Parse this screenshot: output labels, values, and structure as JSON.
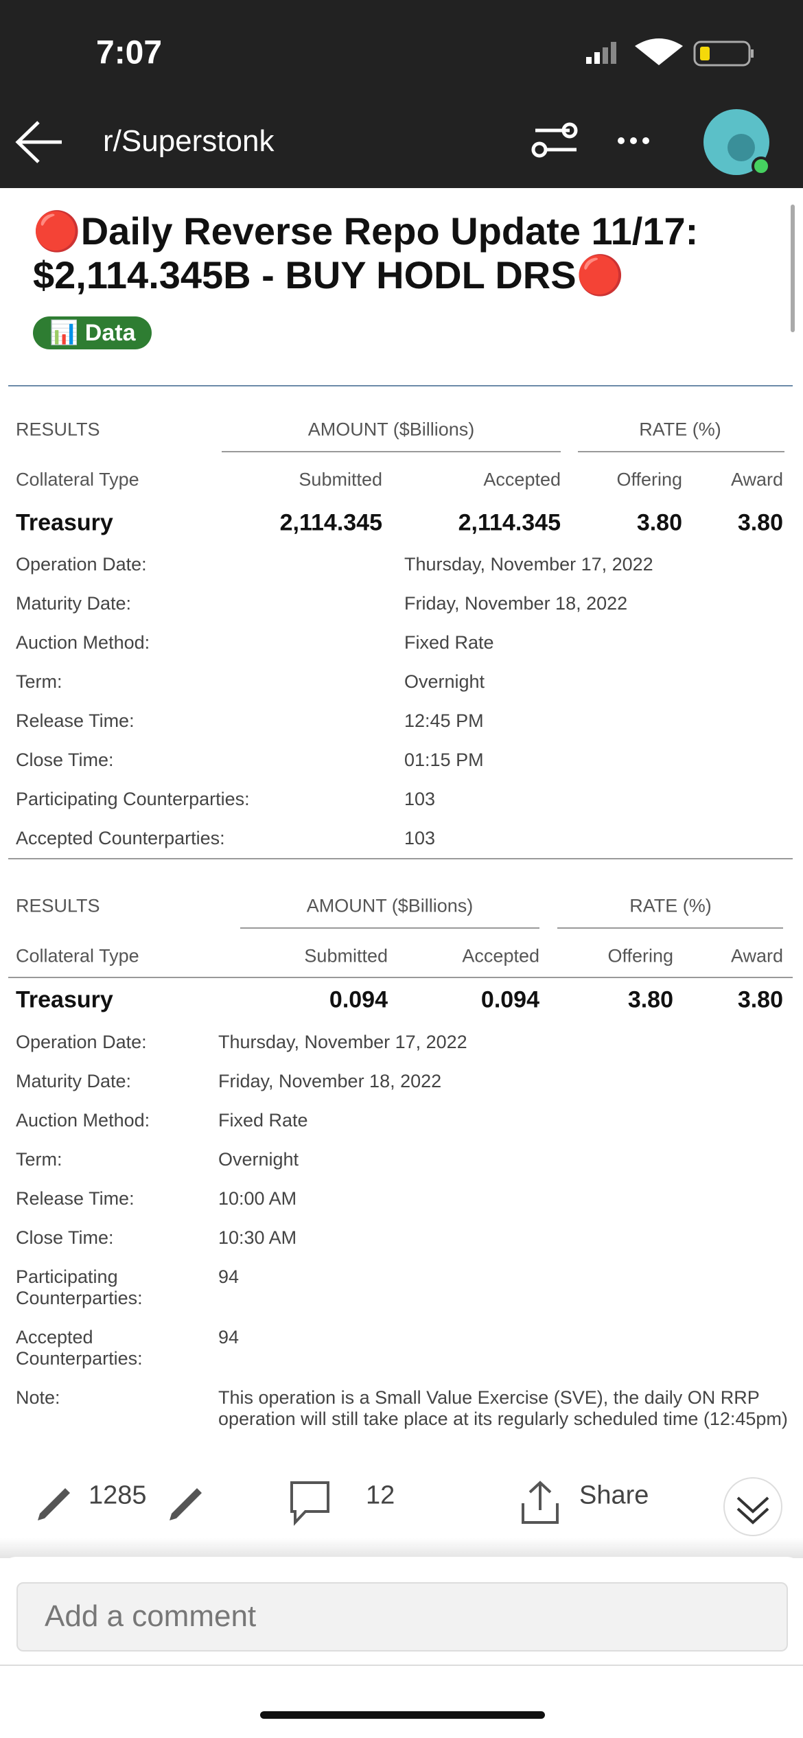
{
  "status_bar": {
    "time": "7:07"
  },
  "nav": {
    "title": "r/Superstonk"
  },
  "post": {
    "title": "🔴Daily Reverse Repo Update 11/17: $2,114.345B - BUY HODL DRS🔴",
    "flair": "📊 Data"
  },
  "tables": [
    {
      "results": "RESULTS",
      "amount": "AMOUNT ($Billions)",
      "rate": "RATE (%)",
      "columns": [
        "Collateral Type",
        "Submitted",
        "Accepted",
        "Offering",
        "Award"
      ],
      "row": [
        "Treasury",
        "2,114.345",
        "2,114.345",
        "3.80",
        "3.80"
      ],
      "details": [
        [
          "Operation Date:",
          "Thursday, November 17, 2022"
        ],
        [
          "Maturity Date:",
          "Friday, November 18, 2022"
        ],
        [
          "Auction Method:",
          "Fixed Rate"
        ],
        [
          "Term:",
          "Overnight"
        ],
        [
          "Release Time:",
          "12:45 PM"
        ],
        [
          "Close Time:",
          "01:15 PM"
        ],
        [
          "Participating Counterparties:",
          "103"
        ],
        [
          "Accepted Counterparties:",
          "103"
        ]
      ]
    },
    {
      "results": "RESULTS",
      "amount": "AMOUNT ($Billions)",
      "rate": "RATE (%)",
      "columns": [
        "Collateral Type",
        "Submitted",
        "Accepted",
        "Offering",
        "Award"
      ],
      "row": [
        "Treasury",
        "0.094",
        "0.094",
        "3.80",
        "3.80"
      ],
      "details": [
        [
          "Operation Date:",
          "Thursday, November 17, 2022"
        ],
        [
          "Maturity Date:",
          "Friday, November 18, 2022"
        ],
        [
          "Auction Method:",
          "Fixed Rate"
        ],
        [
          "Term:",
          "Overnight"
        ],
        [
          "Release Time:",
          "10:00 AM"
        ],
        [
          "Close Time:",
          "10:30 AM"
        ],
        [
          "Participating Counterparties:",
          "94"
        ],
        [
          "Accepted Counterparties:",
          "94"
        ],
        [
          "Note:",
          "This operation is a Small Value Exercise (SVE), the daily ON RRP operation will still take place at its regularly scheduled time (12:45pm)"
        ]
      ]
    }
  ],
  "actions": {
    "votes": "1285",
    "comments": "12",
    "share": "Share"
  },
  "comment_box": {
    "placeholder": "Add a comment"
  }
}
